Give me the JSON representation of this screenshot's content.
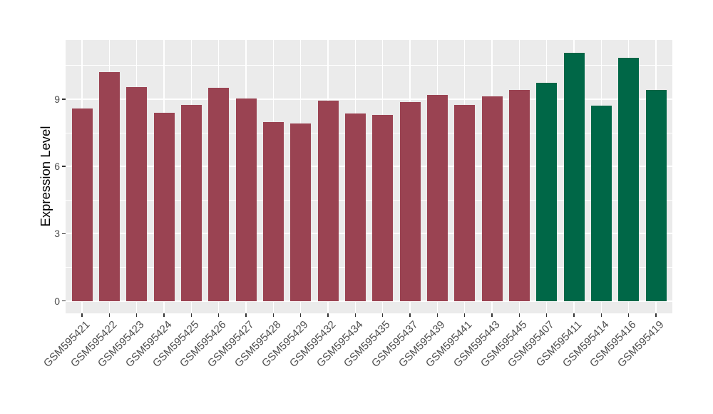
{
  "chart_data": {
    "type": "bar",
    "title": "",
    "xlabel": "",
    "ylabel": "Expression Level",
    "yticks": [
      0,
      3,
      6,
      9
    ],
    "yticks_minor": [
      1.5,
      4.5,
      7.5,
      10.5
    ],
    "ylim": [
      -0.55,
      11.64
    ],
    "grid": "on",
    "legend": "none",
    "panel_bg": "#EBEBEB",
    "grid_color": "#FFFFFF",
    "axis_text_color": "#4D4D4D",
    "tick_mark_color": "#333333",
    "colors": {
      "red": "#9A4352",
      "green": "#006747"
    },
    "categories": [
      "GSM595421",
      "GSM595422",
      "GSM595423",
      "GSM595424",
      "GSM595425",
      "GSM595426",
      "GSM595427",
      "GSM595428",
      "GSM595429",
      "GSM595432",
      "GSM595434",
      "GSM595435",
      "GSM595437",
      "GSM595439",
      "GSM595441",
      "GSM595443",
      "GSM595445",
      "GSM595407",
      "GSM595411",
      "GSM595414",
      "GSM595416",
      "GSM595419"
    ],
    "values": [
      8.6,
      10.22,
      9.53,
      8.39,
      8.73,
      9.51,
      9.02,
      7.97,
      7.93,
      8.92,
      8.36,
      8.29,
      8.88,
      9.19,
      8.73,
      9.14,
      9.4,
      9.72,
      11.08,
      8.71,
      10.86,
      9.42
    ],
    "bar_color_keys": [
      "red",
      "red",
      "red",
      "red",
      "red",
      "red",
      "red",
      "red",
      "red",
      "red",
      "red",
      "red",
      "red",
      "red",
      "red",
      "red",
      "red",
      "green",
      "green",
      "green",
      "green",
      "green"
    ]
  }
}
